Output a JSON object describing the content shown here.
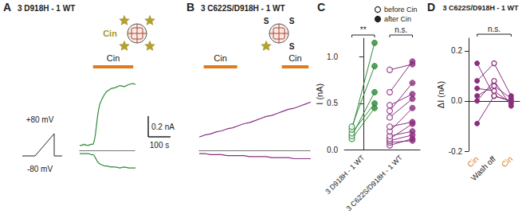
{
  "chart_data": [
    {
      "label": "A",
      "type": "line",
      "title": "3 D918H - 1 WT",
      "tick_labels": false,
      "xlim": [
        0,
        250
      ],
      "ylim": [
        -0.3,
        0.75
      ],
      "x": [
        0,
        10,
        20,
        30,
        40,
        50,
        60,
        65,
        70,
        75,
        80,
        85,
        90,
        100,
        110,
        120,
        140,
        160,
        180,
        200,
        220,
        240,
        250
      ],
      "series": [
        {
          "name": "+80 mV",
          "color": "#2e8b3a",
          "values": [
            0.05,
            0.05,
            0.06,
            0.05,
            0.05,
            0.06,
            0.06,
            0.09,
            0.15,
            0.24,
            0.33,
            0.4,
            0.45,
            0.5,
            0.54,
            0.57,
            0.6,
            0.61,
            0.63,
            0.62,
            0.64,
            0.65,
            0.64
          ]
        },
        {
          "name": "-80 mV",
          "color": "#2e8b3a",
          "values": [
            -0.03,
            -0.03,
            -0.03,
            -0.03,
            -0.03,
            -0.04,
            -0.04,
            -0.05,
            -0.07,
            -0.09,
            -0.11,
            -0.12,
            -0.13,
            -0.14,
            -0.15,
            -0.15,
            -0.16,
            -0.16,
            -0.17,
            -0.16,
            -0.17,
            -0.17,
            -0.17
          ]
        }
      ],
      "stimuli": [
        {
          "label": "Cin",
          "start": 60,
          "end": 240,
          "color": "#e07b1a"
        }
      ],
      "scale_bar": {
        "current": 0.2,
        "current_label": "0.2 nA",
        "time": 100,
        "time_label": "100 s"
      },
      "diagram": {
        "ligand_label": "Cin",
        "ligands": 4,
        "subunit_labels": []
      }
    },
    {
      "label": "B",
      "type": "line",
      "title": "3 C622S/D918H - 1 WT",
      "tick_labels": false,
      "xlim": [
        0,
        500
      ],
      "ylim": [
        -0.3,
        0.75
      ],
      "x": [
        0,
        25,
        50,
        75,
        100,
        125,
        150,
        175,
        200,
        225,
        250,
        275,
        300,
        325,
        350,
        375,
        400,
        425,
        450,
        475,
        500
      ],
      "series": [
        {
          "color": "#8b2f7f",
          "values": [
            0.13,
            0.15,
            0.16,
            0.18,
            0.19,
            0.21,
            0.22,
            0.24,
            0.26,
            0.27,
            0.29,
            0.31,
            0.33,
            0.34,
            0.36,
            0.38,
            0.4,
            0.41,
            0.43,
            0.45,
            0.47
          ]
        },
        {
          "color": "#8b2f7f",
          "values": [
            -0.03,
            -0.03,
            -0.04,
            -0.04,
            -0.04,
            -0.05,
            -0.05,
            -0.05,
            -0.05,
            -0.06,
            -0.06,
            -0.06,
            -0.06,
            -0.07,
            -0.07,
            -0.07,
            -0.07,
            -0.08,
            -0.08,
            -0.08,
            -0.08
          ]
        }
      ],
      "stimuli": [
        {
          "label": "Cin",
          "start": 20,
          "end": 170,
          "color": "#e07b1a"
        },
        {
          "label": "Cin",
          "start": 370,
          "end": 490,
          "color": "#e07b1a"
        }
      ],
      "diagram": {
        "ligands": 1,
        "subunit_labels": [
          "S",
          "S",
          "S"
        ]
      }
    },
    {
      "label": "C",
      "type": "scatter",
      "ylabel": "I (nA)",
      "categories": [
        "3 D918H - 1 WT",
        "3 C622S/D918H - 1 WT"
      ],
      "colors": [
        "#2e8b3a",
        "#8b2f7f"
      ],
      "ylim": [
        0,
        1.2
      ],
      "yticks": [
        {
          "value": 0,
          "label": "0.0"
        },
        0.5,
        {
          "value": 1,
          "label": "1.0"
        }
      ],
      "series": [
        {
          "name": "before Cin",
          "marker": "open",
          "values": [
            [
              0.12,
              0.15,
              0.18,
              0.22,
              0.25
            ],
            [
              0.05,
              0.08,
              0.1,
              0.12,
              0.15,
              0.2,
              0.25,
              0.35,
              0.42,
              0.48,
              0.62,
              0.86
            ]
          ]
        },
        {
          "name": "after Cin",
          "marker": "filled",
          "values": [
            [
              0.45,
              0.62,
              0.5,
              1.15,
              0.9
            ],
            [
              0.12,
              0.1,
              0.16,
              0.28,
              0.2,
              0.45,
              0.3,
              0.55,
              0.72,
              0.6,
              0.95,
              0.92
            ]
          ]
        }
      ],
      "annotations": [
        {
          "text": "**",
          "category": 0
        },
        {
          "text": "n.s.",
          "category": 1
        }
      ]
    },
    {
      "label": "D",
      "type": "line",
      "title": "3 C622S/D918H - 1 WT",
      "ylabel": "ΔI (nA)",
      "categories": [
        "Cin",
        "Wash off",
        "Cin"
      ],
      "color": "#8b2f7f",
      "ylim": [
        -0.2,
        0.25
      ],
      "yticks": [
        -0.2,
        {
          "value": 0,
          "label": "0.0"
        },
        0.2
      ],
      "series": [
        {
          "values": [
            0.15,
            0.02,
            0
          ]
        },
        {
          "values": [
            0.08,
            0.15,
            0.02
          ]
        },
        {
          "values": [
            0.05,
            0.04,
            -0.01
          ]
        },
        {
          "values": [
            0.02,
            0.06,
            0.01
          ]
        },
        {
          "values": [
            0,
            0.08,
            -0.02
          ]
        },
        {
          "values": [
            -0.09,
            0.02,
            0
          ]
        }
      ],
      "annotations": [
        {
          "text": "n.s.",
          "from": 0,
          "to": 2
        }
      ]
    }
  ]
}
